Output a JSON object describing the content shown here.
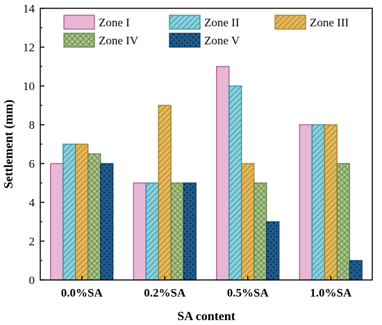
{
  "chart_data": {
    "type": "bar",
    "xlabel": "SA content",
    "ylabel": "Settlement (mm)",
    "ylim": [
      0,
      14
    ],
    "yticks": [
      "0",
      "2",
      "4",
      "6",
      "8",
      "10",
      "12",
      "14"
    ],
    "categories": [
      "0.0%SA",
      "0.2%SA",
      "0.5%SA",
      "1.0%SA"
    ],
    "legend_placement": "top",
    "grid": false,
    "series": [
      {
        "name": "Zone I",
        "values": [
          6,
          5,
          11,
          8
        ],
        "fill": "#e6b8d6",
        "stroke": "#a8487e",
        "pattern": "none"
      },
      {
        "name": "Zone II",
        "values": [
          7,
          5,
          10,
          8
        ],
        "fill": "#8ecfdc",
        "stroke": "#1a8a9c",
        "pattern": "diag"
      },
      {
        "name": "Zone III",
        "values": [
          7,
          9,
          6,
          8
        ],
        "fill": "#e6b85c",
        "stroke": "#9c7418",
        "pattern": "diag"
      },
      {
        "name": "Zone IV",
        "values": [
          6.5,
          5,
          5,
          6
        ],
        "fill": "#a8c48c",
        "stroke": "#5c7a3a",
        "pattern": "cross"
      },
      {
        "name": "Zone V",
        "values": [
          6,
          5,
          3,
          1
        ],
        "fill": "#1f5a8c",
        "stroke": "#0e3558",
        "pattern": "dots"
      }
    ]
  }
}
